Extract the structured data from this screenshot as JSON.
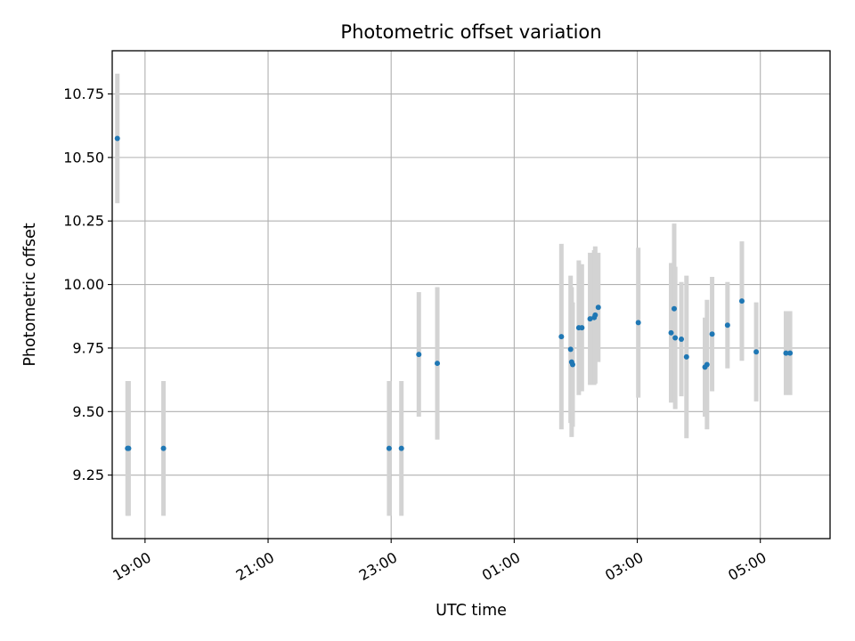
{
  "chart_data": {
    "type": "scatter",
    "title": "Photometric offset variation",
    "xlabel": "UTC time",
    "ylabel": "Photometric offset",
    "x_is_time": true,
    "xlim": [
      "18:28",
      "06:08"
    ],
    "ylim": [
      9.0,
      10.92
    ],
    "x_ticks": [
      "19:00",
      "21:00",
      "23:00",
      "01:00",
      "03:00",
      "05:00"
    ],
    "y_ticks": [
      9.25,
      9.5,
      9.75,
      10.0,
      10.25,
      10.5,
      10.75
    ],
    "grid": true,
    "point_color": "#1f77b4",
    "errorbar_color": "#d3d3d3",
    "points": [
      {
        "x": "18:33",
        "y": 10.575,
        "err": 0.255
      },
      {
        "x": "18:43",
        "y": 9.355,
        "err": 0.265
      },
      {
        "x": "18:44",
        "y": 9.355,
        "err": 0.265
      },
      {
        "x": "19:18",
        "y": 9.355,
        "err": 0.265
      },
      {
        "x": "22:58",
        "y": 9.355,
        "err": 0.265
      },
      {
        "x": "23:10",
        "y": 9.355,
        "err": 0.265
      },
      {
        "x": "23:27",
        "y": 9.725,
        "err": 0.245
      },
      {
        "x": "23:45",
        "y": 9.69,
        "err": 0.3
      },
      {
        "x": "01:46",
        "y": 9.795,
        "err": 0.365
      },
      {
        "x": "01:55",
        "y": 9.745,
        "err": 0.29
      },
      {
        "x": "01:56",
        "y": 9.695,
        "err": 0.295
      },
      {
        "x": "01:57",
        "y": 9.685,
        "err": 0.245
      },
      {
        "x": "02:03",
        "y": 9.83,
        "err": 0.265
      },
      {
        "x": "02:06",
        "y": 9.83,
        "err": 0.25
      },
      {
        "x": "02:14",
        "y": 9.865,
        "err": 0.26
      },
      {
        "x": "02:18",
        "y": 9.87,
        "err": 0.265
      },
      {
        "x": "02:19",
        "y": 9.88,
        "err": 0.27
      },
      {
        "x": "02:22",
        "y": 9.91,
        "err": 0.215
      },
      {
        "x": "03:01",
        "y": 9.85,
        "err": 0.295
      },
      {
        "x": "03:33",
        "y": 9.81,
        "err": 0.275
      },
      {
        "x": "03:36",
        "y": 9.905,
        "err": 0.335
      },
      {
        "x": "03:37",
        "y": 9.79,
        "err": 0.28
      },
      {
        "x": "03:43",
        "y": 9.785,
        "err": 0.225
      },
      {
        "x": "03:48",
        "y": 9.715,
        "err": 0.32
      },
      {
        "x": "04:06",
        "y": 9.675,
        "err": 0.195
      },
      {
        "x": "04:08",
        "y": 9.685,
        "err": 0.255
      },
      {
        "x": "04:13",
        "y": 9.805,
        "err": 0.225
      },
      {
        "x": "04:28",
        "y": 9.84,
        "err": 0.17
      },
      {
        "x": "04:42",
        "y": 9.935,
        "err": 0.235
      },
      {
        "x": "04:56",
        "y": 9.735,
        "err": 0.195
      },
      {
        "x": "05:25",
        "y": 9.73,
        "err": 0.165
      },
      {
        "x": "05:29",
        "y": 9.73,
        "err": 0.165
      }
    ]
  }
}
